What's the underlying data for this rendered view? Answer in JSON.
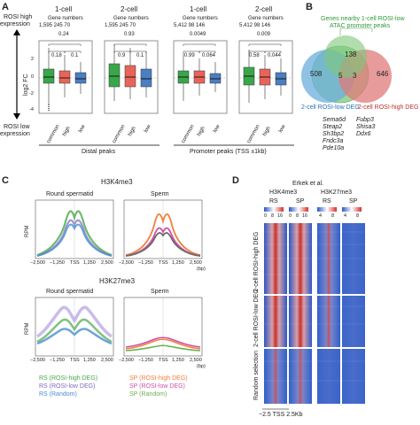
{
  "panels": {
    "a": "A",
    "b": "B",
    "c": "C",
    "d": "D"
  },
  "panelA": {
    "yaxis": {
      "top_l1": "ROSI high",
      "top_l2": "expression",
      "label": "log2 FC",
      "bottom_l1": "ROSI low",
      "bottom_l2": "expression"
    },
    "ticks": [
      "2",
      "0",
      "-2",
      "-4"
    ],
    "col_header_gene": "Gene numbers",
    "groups": [
      {
        "title": "1-cell",
        "counts": "1,595  245   70",
        "p1": "0.24",
        "p2": "0.18",
        "p3": "0.1"
      },
      {
        "title": "2-cell",
        "counts": "1,595  245   70",
        "p1": "0.93",
        "p2": "0.9",
        "p3": "0.1"
      },
      {
        "title": "1-cell",
        "counts": "5,412   98   146",
        "p1": "0.0049",
        "p2": "0.99",
        "p3": "0.064"
      },
      {
        "title": "2-cell",
        "counts": "5,412   98   146",
        "p1": "0.009",
        "p2": "0.58",
        "p3": "0.044"
      }
    ],
    "xcats": [
      "common",
      "high",
      "low"
    ],
    "section_distal": "Distal peaks",
    "section_promoter": "Promoter peaks (TSS ±1kb)"
  },
  "panelB": {
    "title_l1": "Genes nearby 1-cell ROSI-low",
    "title_l2": "ATAC promoter peaks",
    "n_left": "508",
    "n_top": "138",
    "n_right": "646",
    "n_center_left": "5",
    "n_center_right": "3",
    "label_left": "2-cell ROSI-low DEG",
    "label_right": "2-cell ROSI-high DEG",
    "genes_left": [
      "Sema6d",
      "Steap2",
      "Sh3bp2",
      "Fndc3a",
      "Pde10a"
    ],
    "genes_right": [
      "Fubp3",
      "Shisa3",
      "Ddx6"
    ]
  },
  "panelC": {
    "h3k4": "H3K4me3",
    "h3k27": "H3K27me3",
    "rs": "Round spermatid",
    "sp": "Sperm",
    "ylab": "RPM",
    "xticks": [
      "−2,500",
      "−1,250",
      "TSS",
      "1,250",
      "2,500"
    ],
    "xunit": "(bp)",
    "legend_left": [
      "RS (ROSI-high DEG)",
      "RS (ROSI-low DEG)",
      "RS (Random)"
    ],
    "legend_right": [
      "SP (ROSI-high DEG)",
      "SP (ROSI-low DEG)",
      "SP (Random)"
    ]
  },
  "panelD": {
    "author": "Erkek et al.",
    "h3k4": "H3K4me3",
    "h3k27": "H3K27me3",
    "cols": [
      "RS",
      "SP",
      "RS",
      "SP"
    ],
    "scale1": [
      "0",
      "8",
      "16"
    ],
    "scale2": [
      "0",
      "8",
      "16"
    ],
    "scale3": [
      "4",
      "8"
    ],
    "scale4": [
      "4",
      "8"
    ],
    "rows": [
      "2-cell ROSI-high DEG",
      "2-cell ROSI-low DEG",
      "Random selection"
    ],
    "xaxis": "−2.5 TSS 2.5Kb"
  },
  "colors": {
    "green": "#3aa64a",
    "red": "#e8645a",
    "blue": "#4a7fc1",
    "venn_green": "#7ec87a",
    "venn_blue": "#6aaedc",
    "venn_red": "#e07a7a",
    "rs_high": "#4aa84a",
    "rs_low": "#7b6bbf",
    "rs_rand": "#4a8ed0",
    "sp_high": "#f08040",
    "sp_low": "#d04fa8",
    "sp_rand": "#6ab04c"
  }
}
